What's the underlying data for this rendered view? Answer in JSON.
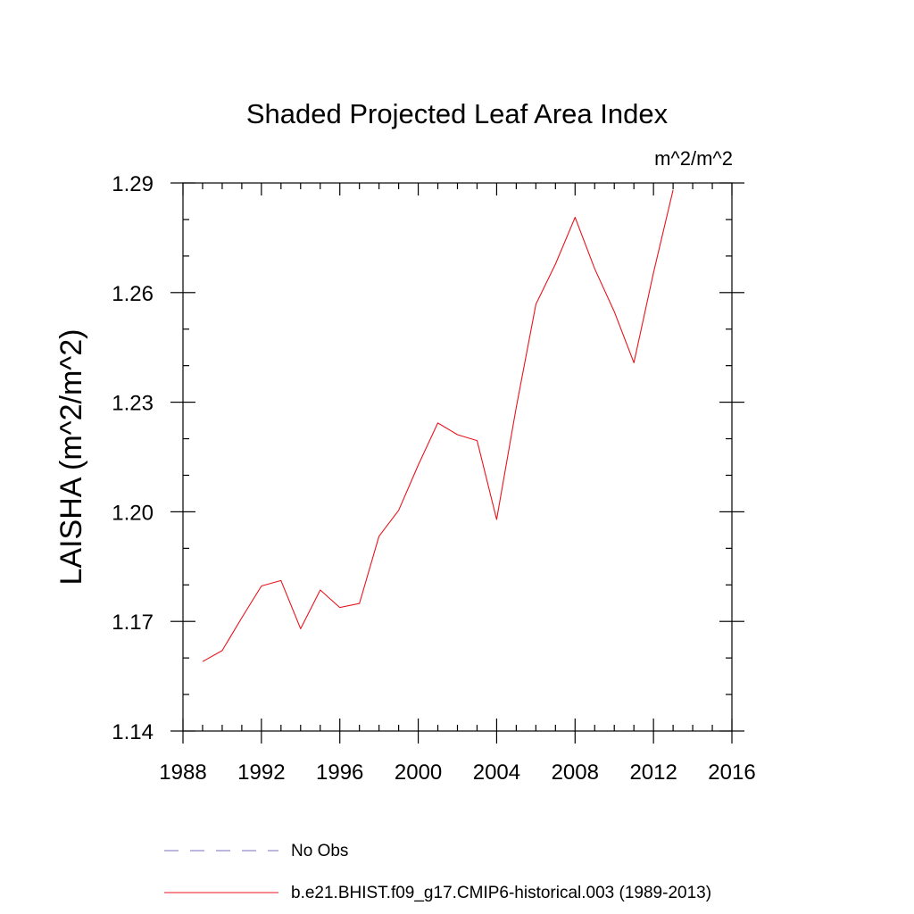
{
  "chart_data": {
    "type": "line",
    "title": "Shaded Projected Leaf Area Index",
    "units_label": "m^2/m^2",
    "ylabel": "LAISHA  (m^2/m^2)",
    "xlabel": "",
    "xlim": [
      1988,
      2016
    ],
    "ylim": [
      1.14,
      1.29
    ],
    "x_ticks": [
      1988,
      1992,
      1996,
      2000,
      2004,
      2008,
      2012,
      2016
    ],
    "y_ticks": [
      1.14,
      1.17,
      1.2,
      1.23,
      1.26,
      1.29
    ],
    "y_tick_labels": [
      "1.14",
      "1.17",
      "1.20",
      "1.23",
      "1.26",
      "1.29"
    ],
    "grid": false,
    "legend_position": "bottom",
    "colors": {
      "model": "#e8141c",
      "obs": "#7a6fc0"
    },
    "series": [
      {
        "name": "b.e21.BHIST.f09_g17.CMIP6-historical.003 (1989-2013)",
        "style": "solid",
        "x": [
          1989,
          1990,
          1991,
          1992,
          1993,
          1994,
          1995,
          1996,
          1997,
          1998,
          1999,
          2000,
          2001,
          2002,
          2003,
          2004,
          2005,
          2006,
          2007,
          2008,
          2009,
          2010,
          2011,
          2012,
          2013
        ],
        "y": [
          1.159,
          1.162,
          1.171,
          1.1797,
          1.1812,
          1.168,
          1.1786,
          1.1738,
          1.1749,
          1.1933,
          1.2004,
          1.2128,
          1.2243,
          1.2211,
          1.2195,
          1.1979,
          1.2286,
          1.2568,
          1.2678,
          1.2806,
          1.2665,
          1.2548,
          1.2408,
          1.2654,
          1.2881
        ]
      }
    ],
    "legend": [
      {
        "label": "No Obs",
        "style": "dashed"
      },
      {
        "label": "b.e21.BHIST.f09_g17.CMIP6-historical.003 (1989-2013)",
        "style": "solid"
      }
    ]
  }
}
